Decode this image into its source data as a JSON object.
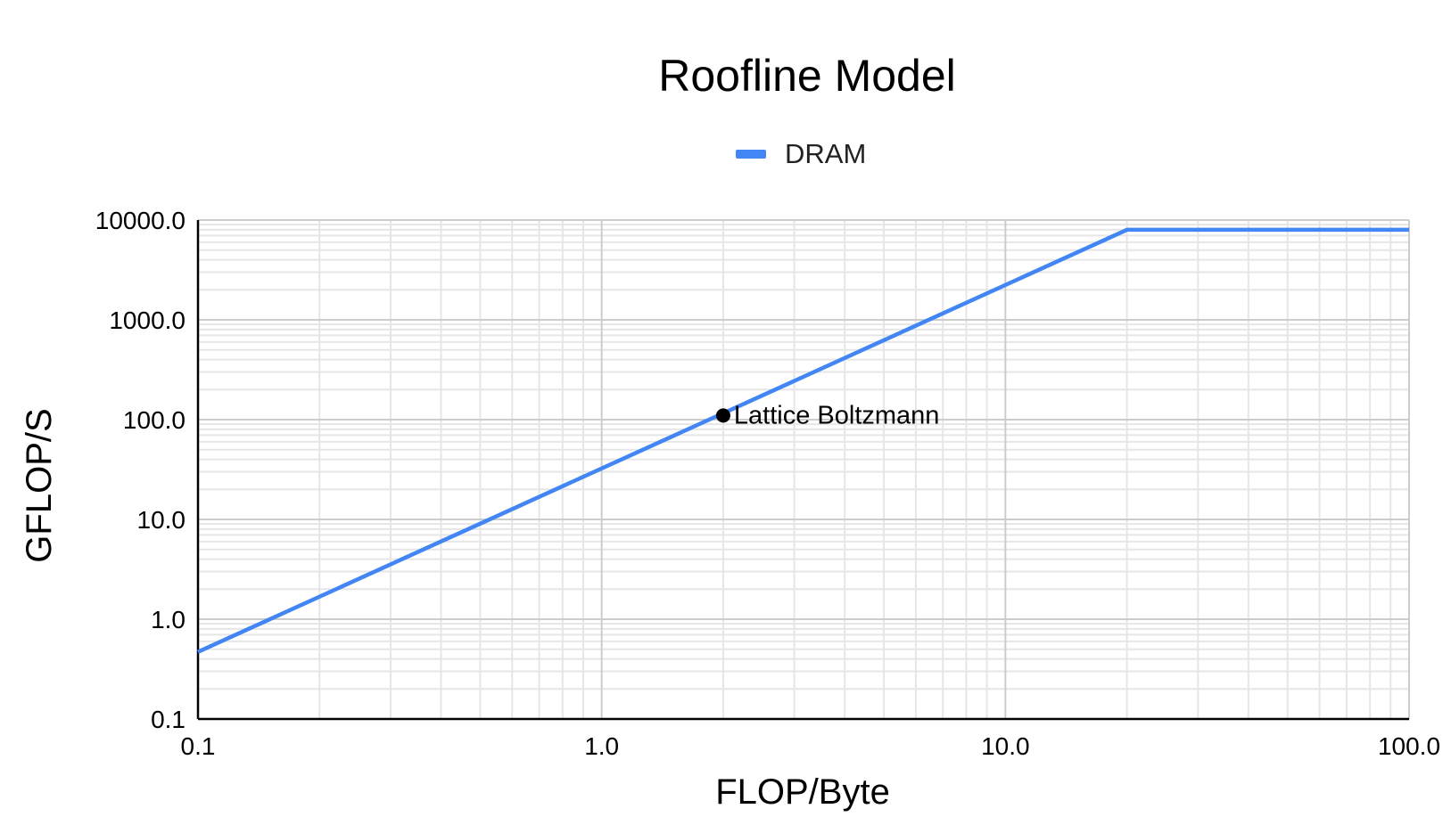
{
  "chart_data": {
    "type": "line",
    "title": "Roofline Model",
    "xlabel": "FLOP/Byte",
    "ylabel": "GFLOP/S",
    "x_scale": "log",
    "y_scale": "log",
    "xlim": [
      0.1,
      100.0
    ],
    "ylim": [
      0.1,
      10000.0
    ],
    "x_ticks": [
      "0.1",
      "1.0",
      "10.0",
      "100.0"
    ],
    "y_ticks": [
      "0.1",
      "1.0",
      "10.0",
      "100.0",
      "1000.0",
      "10000.0"
    ],
    "x_tick_values": [
      0.1,
      1.0,
      10.0,
      100.0
    ],
    "y_tick_values": [
      0.1,
      1.0,
      10.0,
      100.0,
      1000.0,
      10000.0
    ],
    "grid": true,
    "legend_position": "top-center",
    "series": [
      {
        "name": "DRAM",
        "color": "#4285f4",
        "points": [
          {
            "x": 0.1,
            "y": 0.47
          },
          {
            "x": 20.0,
            "y": 8000.0
          },
          {
            "x": 100.0,
            "y": 8000.0
          }
        ]
      }
    ],
    "annotations": [
      {
        "label": "Lattice Boltzmann",
        "x": 2.0,
        "y": 110.0,
        "color": "#000000"
      }
    ]
  }
}
